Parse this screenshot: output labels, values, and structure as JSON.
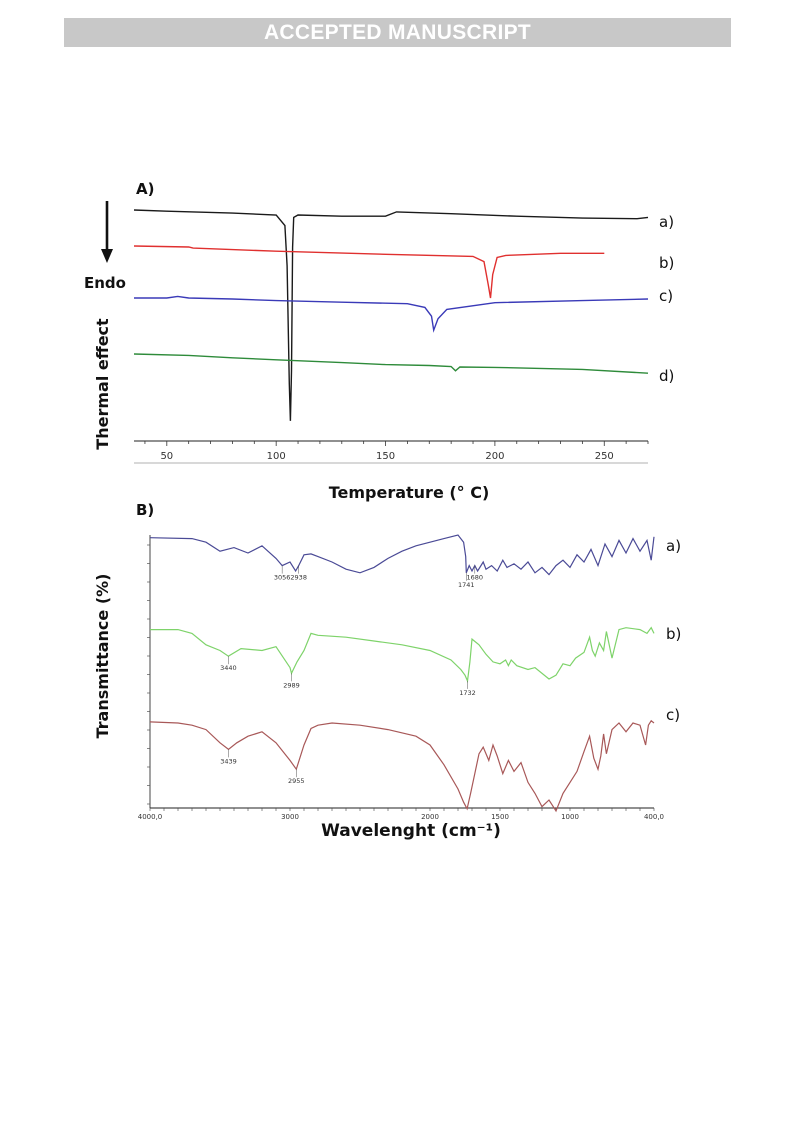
{
  "banner": {
    "text": "ACCEPTED MANUSCRIPT"
  },
  "chart_data": [
    {
      "type": "line",
      "panel_label": "A)",
      "title": "",
      "xlabel": "Temperature (° C)",
      "ylabel": "Thermal effect",
      "direction_label": "Endo",
      "xlim": [
        35,
        270
      ],
      "xticks": [
        50,
        100,
        150,
        200,
        250
      ],
      "grid": false,
      "series": [
        {
          "label": "a)",
          "color": "#1a1a1a",
          "baseline": 0.0,
          "x": [
            35,
            50,
            80,
            100,
            104,
            105,
            106,
            106.5,
            107,
            107.5,
            108,
            110,
            130,
            150,
            155,
            180,
            210,
            240,
            265,
            270
          ],
          "y": [
            0.0,
            -0.02,
            -0.05,
            -0.08,
            -0.25,
            -0.9,
            -2.8,
            -3.4,
            -2.6,
            -0.6,
            -0.12,
            -0.08,
            -0.1,
            -0.1,
            -0.03,
            -0.06,
            -0.1,
            -0.13,
            -0.14,
            -0.12
          ]
        },
        {
          "label": "b)",
          "color": "#e0302f",
          "baseline": 0.0,
          "x": [
            35,
            60,
            62,
            100,
            150,
            190,
            195,
            197,
            198,
            199,
            201,
            205,
            230,
            250
          ],
          "y": [
            0.0,
            -0.02,
            -0.04,
            -0.1,
            -0.16,
            -0.2,
            -0.3,
            -0.75,
            -1.0,
            -0.55,
            -0.22,
            -0.18,
            -0.14,
            -0.14
          ]
        },
        {
          "label": "c)",
          "color": "#3a3ab8",
          "baseline": 0.0,
          "x": [
            35,
            50,
            55,
            60,
            80,
            100,
            130,
            160,
            168,
            171,
            172,
            174,
            178,
            200,
            240,
            270
          ],
          "y": [
            0.0,
            0.0,
            0.03,
            0.0,
            -0.02,
            -0.05,
            -0.08,
            -0.11,
            -0.18,
            -0.35,
            -0.62,
            -0.4,
            -0.22,
            -0.09,
            -0.05,
            -0.02
          ]
        },
        {
          "label": "d)",
          "color": "#2e8b3a",
          "baseline": 0.0,
          "x": [
            35,
            60,
            80,
            100,
            130,
            150,
            170,
            180,
            182,
            184,
            200,
            240,
            270
          ],
          "y": [
            0.0,
            -0.03,
            -0.08,
            -0.12,
            -0.18,
            -0.22,
            -0.24,
            -0.26,
            -0.35,
            -0.27,
            -0.28,
            -0.32,
            -0.4
          ]
        }
      ]
    },
    {
      "type": "line",
      "panel_label": "B)",
      "title": "",
      "xlabel": "Wavelenght (cm⁻¹)",
      "ylabel": "Transmittance (%)",
      "xlim": [
        4000,
        400
      ],
      "xreversed": true,
      "xticks": [
        "4000,0",
        "3000",
        "2000",
        "1500",
        "1000",
        "400,0"
      ],
      "xtick_values": [
        4000,
        3000,
        2000,
        1500,
        1000,
        400
      ],
      "grid": false,
      "series": [
        {
          "label": "a)",
          "color": "#4a4a96",
          "x": [
            4000,
            3700,
            3600,
            3500,
            3400,
            3300,
            3200,
            3100,
            3056,
            3000,
            2960,
            2938,
            2900,
            2850,
            2800,
            2700,
            2600,
            2500,
            2400,
            2300,
            2200,
            2100,
            2000,
            1900,
            1800,
            1760,
            1745,
            1741,
            1720,
            1700,
            1680,
            1660,
            1620,
            1600,
            1560,
            1520,
            1480,
            1450,
            1400,
            1350,
            1300,
            1250,
            1200,
            1150,
            1100,
            1050,
            1000,
            950,
            900,
            850,
            800,
            750,
            700,
            650,
            600,
            550,
            500,
            450,
            420,
            400
          ],
          "y": [
            97,
            96,
            92,
            82,
            86,
            80,
            88,
            74,
            66,
            70,
            60,
            66,
            78,
            79,
            76,
            70,
            62,
            58,
            64,
            74,
            82,
            88,
            92,
            96,
            100,
            92,
            76,
            58,
            66,
            60,
            66,
            60,
            70,
            62,
            66,
            60,
            72,
            64,
            68,
            62,
            70,
            58,
            64,
            56,
            66,
            72,
            64,
            78,
            70,
            84,
            66,
            90,
            76,
            94,
            80,
            96,
            82,
            94,
            72,
            98
          ]
        },
        {
          "label": "b)",
          "color": "#7ed36a",
          "x": [
            4000,
            3800,
            3700,
            3600,
            3500,
            3440,
            3350,
            3200,
            3100,
            3000,
            2989,
            2950,
            2900,
            2850,
            2800,
            2600,
            2400,
            2200,
            2000,
            1850,
            1780,
            1750,
            1732,
            1715,
            1700,
            1650,
            1600,
            1550,
            1500,
            1460,
            1440,
            1420,
            1380,
            1300,
            1250,
            1150,
            1100,
            1050,
            1000,
            960,
            900,
            860,
            840,
            820,
            790,
            760,
            740,
            720,
            700,
            650,
            600,
            500,
            450,
            420,
            400
          ],
          "y": [
            92,
            92,
            88,
            76,
            70,
            64,
            72,
            70,
            74,
            52,
            46,
            58,
            70,
            88,
            86,
            84,
            80,
            76,
            70,
            60,
            50,
            44,
            38,
            58,
            82,
            76,
            66,
            58,
            56,
            60,
            54,
            60,
            54,
            50,
            52,
            40,
            44,
            56,
            54,
            62,
            68,
            84,
            70,
            64,
            78,
            70,
            90,
            76,
            62,
            92,
            94,
            92,
            88,
            94,
            88
          ]
        },
        {
          "label": "c)",
          "color": "#a85858",
          "x": [
            4000,
            3800,
            3700,
            3600,
            3500,
            3439,
            3380,
            3300,
            3200,
            3100,
            3000,
            2955,
            2900,
            2850,
            2800,
            2700,
            2500,
            2300,
            2100,
            2000,
            1900,
            1800,
            1760,
            1735,
            1710,
            1680,
            1650,
            1620,
            1580,
            1550,
            1520,
            1480,
            1440,
            1400,
            1350,
            1300,
            1250,
            1200,
            1150,
            1100,
            1050,
            1000,
            950,
            900,
            860,
            830,
            800,
            780,
            760,
            740,
            700,
            650,
            600,
            550,
            500,
            460,
            440,
            420,
            400
          ],
          "y": [
            91,
            90,
            88,
            84,
            72,
            66,
            72,
            78,
            82,
            72,
            56,
            48,
            70,
            85,
            88,
            90,
            88,
            84,
            78,
            70,
            52,
            30,
            18,
            12,
            26,
            44,
            62,
            68,
            56,
            70,
            60,
            44,
            56,
            46,
            54,
            36,
            26,
            14,
            20,
            10,
            26,
            36,
            46,
            64,
            78,
            58,
            48,
            60,
            80,
            62,
            84,
            90,
            82,
            90,
            88,
            70,
            88,
            92,
            90
          ]
        }
      ],
      "annotations": [
        {
          "text": "3056",
          "series": "a)",
          "x": 3056
        },
        {
          "text": "2938",
          "series": "a)",
          "x": 2938
        },
        {
          "text": "1741",
          "series": "a)",
          "x": 1741
        },
        {
          "text": "1680",
          "series": "a)",
          "x": 1680
        },
        {
          "text": "3440",
          "series": "b)",
          "x": 3440
        },
        {
          "text": "2989",
          "series": "b)",
          "x": 2989
        },
        {
          "text": "1732",
          "series": "b)",
          "x": 1732
        },
        {
          "text": "3439",
          "series": "c)",
          "x": 3439
        },
        {
          "text": "2955",
          "series": "c)",
          "x": 2955
        }
      ]
    }
  ]
}
